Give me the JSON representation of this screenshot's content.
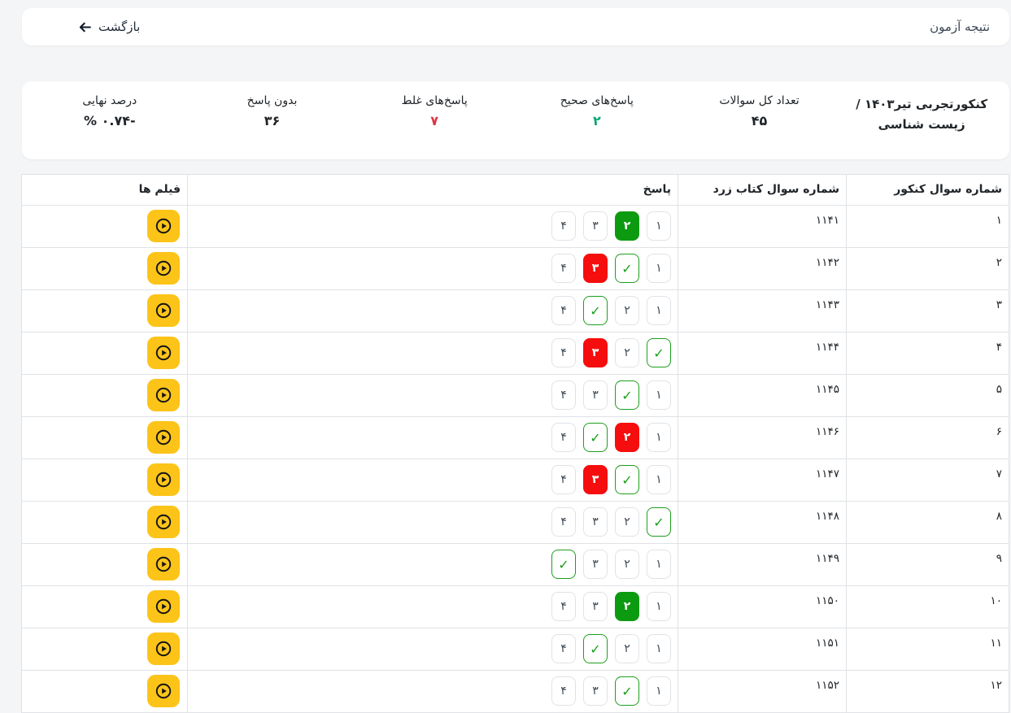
{
  "topbar": {
    "title": "نتیجه آزمون",
    "back_label": "بازگشت",
    "back_icon": "arrow-left-icon"
  },
  "summary": {
    "title": "کنکورتجربی تیر۱۴۰۳ /زیست شناسی",
    "stats": [
      {
        "label": "تعداد کل سوالات",
        "value": "۴۵",
        "color": "#212529",
        "ltr": false
      },
      {
        "label": "پاسخ‌های صحیح",
        "value": "۲",
        "color": "#0ca678",
        "ltr": false
      },
      {
        "label": "پاسخ‌های غلط",
        "value": "۷",
        "color": "#dc3545",
        "ltr": false
      },
      {
        "label": "بدون پاسخ",
        "value": "۳۶",
        "color": "#212529",
        "ltr": false
      },
      {
        "label": "درصد نهایی",
        "value": "% ۰.۷۴-",
        "color": "#212529",
        "ltr": true
      }
    ]
  },
  "table": {
    "headers": {
      "kn": "شماره سوال کنکور",
      "book": "شماره سوال کتاب زرد",
      "answer": "پاسخ",
      "videos": "فیلم ها"
    },
    "video_icon": "play-circle-icon",
    "rows": [
      {
        "kn": "۱",
        "book": "۱۱۴۱",
        "options": [
          {
            "display": "۱",
            "state": "plain"
          },
          {
            "display": "۲",
            "state": "correct-chosen"
          },
          {
            "display": "۳",
            "state": "plain"
          },
          {
            "display": "۴",
            "state": "plain"
          }
        ]
      },
      {
        "kn": "۲",
        "book": "۱۱۴۲",
        "options": [
          {
            "display": "۱",
            "state": "plain"
          },
          {
            "display": "✓",
            "state": "correct-mark"
          },
          {
            "display": "۳",
            "state": "wrong-chosen"
          },
          {
            "display": "۴",
            "state": "plain"
          }
        ]
      },
      {
        "kn": "۳",
        "book": "۱۱۴۳",
        "options": [
          {
            "display": "۱",
            "state": "plain"
          },
          {
            "display": "۲",
            "state": "plain"
          },
          {
            "display": "✓",
            "state": "correct-mark"
          },
          {
            "display": "۴",
            "state": "plain"
          }
        ]
      },
      {
        "kn": "۴",
        "book": "۱۱۴۴",
        "options": [
          {
            "display": "✓",
            "state": "correct-mark"
          },
          {
            "display": "۲",
            "state": "plain"
          },
          {
            "display": "۳",
            "state": "wrong-chosen"
          },
          {
            "display": "۴",
            "state": "plain"
          }
        ]
      },
      {
        "kn": "۵",
        "book": "۱۱۴۵",
        "options": [
          {
            "display": "۱",
            "state": "plain"
          },
          {
            "display": "✓",
            "state": "correct-mark"
          },
          {
            "display": "۳",
            "state": "plain"
          },
          {
            "display": "۴",
            "state": "plain"
          }
        ]
      },
      {
        "kn": "۶",
        "book": "۱۱۴۶",
        "options": [
          {
            "display": "۱",
            "state": "plain"
          },
          {
            "display": "۲",
            "state": "wrong-chosen"
          },
          {
            "display": "✓",
            "state": "correct-mark"
          },
          {
            "display": "۴",
            "state": "plain"
          }
        ]
      },
      {
        "kn": "۷",
        "book": "۱۱۴۷",
        "options": [
          {
            "display": "۱",
            "state": "plain"
          },
          {
            "display": "✓",
            "state": "correct-mark"
          },
          {
            "display": "۳",
            "state": "wrong-chosen"
          },
          {
            "display": "۴",
            "state": "plain"
          }
        ]
      },
      {
        "kn": "۸",
        "book": "۱۱۴۸",
        "options": [
          {
            "display": "✓",
            "state": "correct-mark"
          },
          {
            "display": "۲",
            "state": "plain"
          },
          {
            "display": "۳",
            "state": "plain"
          },
          {
            "display": "۴",
            "state": "plain"
          }
        ]
      },
      {
        "kn": "۹",
        "book": "۱۱۴۹",
        "options": [
          {
            "display": "۱",
            "state": "plain"
          },
          {
            "display": "۲",
            "state": "plain"
          },
          {
            "display": "۳",
            "state": "plain"
          },
          {
            "display": "✓",
            "state": "correct-mark"
          }
        ]
      },
      {
        "kn": "۱۰",
        "book": "۱۱۵۰",
        "options": [
          {
            "display": "۱",
            "state": "plain"
          },
          {
            "display": "۲",
            "state": "correct-chosen"
          },
          {
            "display": "۳",
            "state": "plain"
          },
          {
            "display": "۴",
            "state": "plain"
          }
        ]
      },
      {
        "kn": "۱۱",
        "book": "۱۱۵۱",
        "options": [
          {
            "display": "۱",
            "state": "plain"
          },
          {
            "display": "۲",
            "state": "plain"
          },
          {
            "display": "✓",
            "state": "correct-mark"
          },
          {
            "display": "۴",
            "state": "plain"
          }
        ]
      },
      {
        "kn": "۱۲",
        "book": "۱۱۵۲",
        "options": [
          {
            "display": "۱",
            "state": "plain"
          },
          {
            "display": "✓",
            "state": "correct-mark"
          },
          {
            "display": "۳",
            "state": "plain"
          },
          {
            "display": "۴",
            "state": "plain"
          }
        ]
      }
    ]
  },
  "colors": {
    "page_bg": "#f4f5f7",
    "card_bg": "#ffffff",
    "accent_yellow": "#fcc419",
    "correct_fill_green": "#0c9b10",
    "wrong_fill_red": "#f60d0d",
    "check_green": "#18a018",
    "stat_green": "#0ca678",
    "stat_red": "#dc3545",
    "border": "#dfe2e6"
  }
}
